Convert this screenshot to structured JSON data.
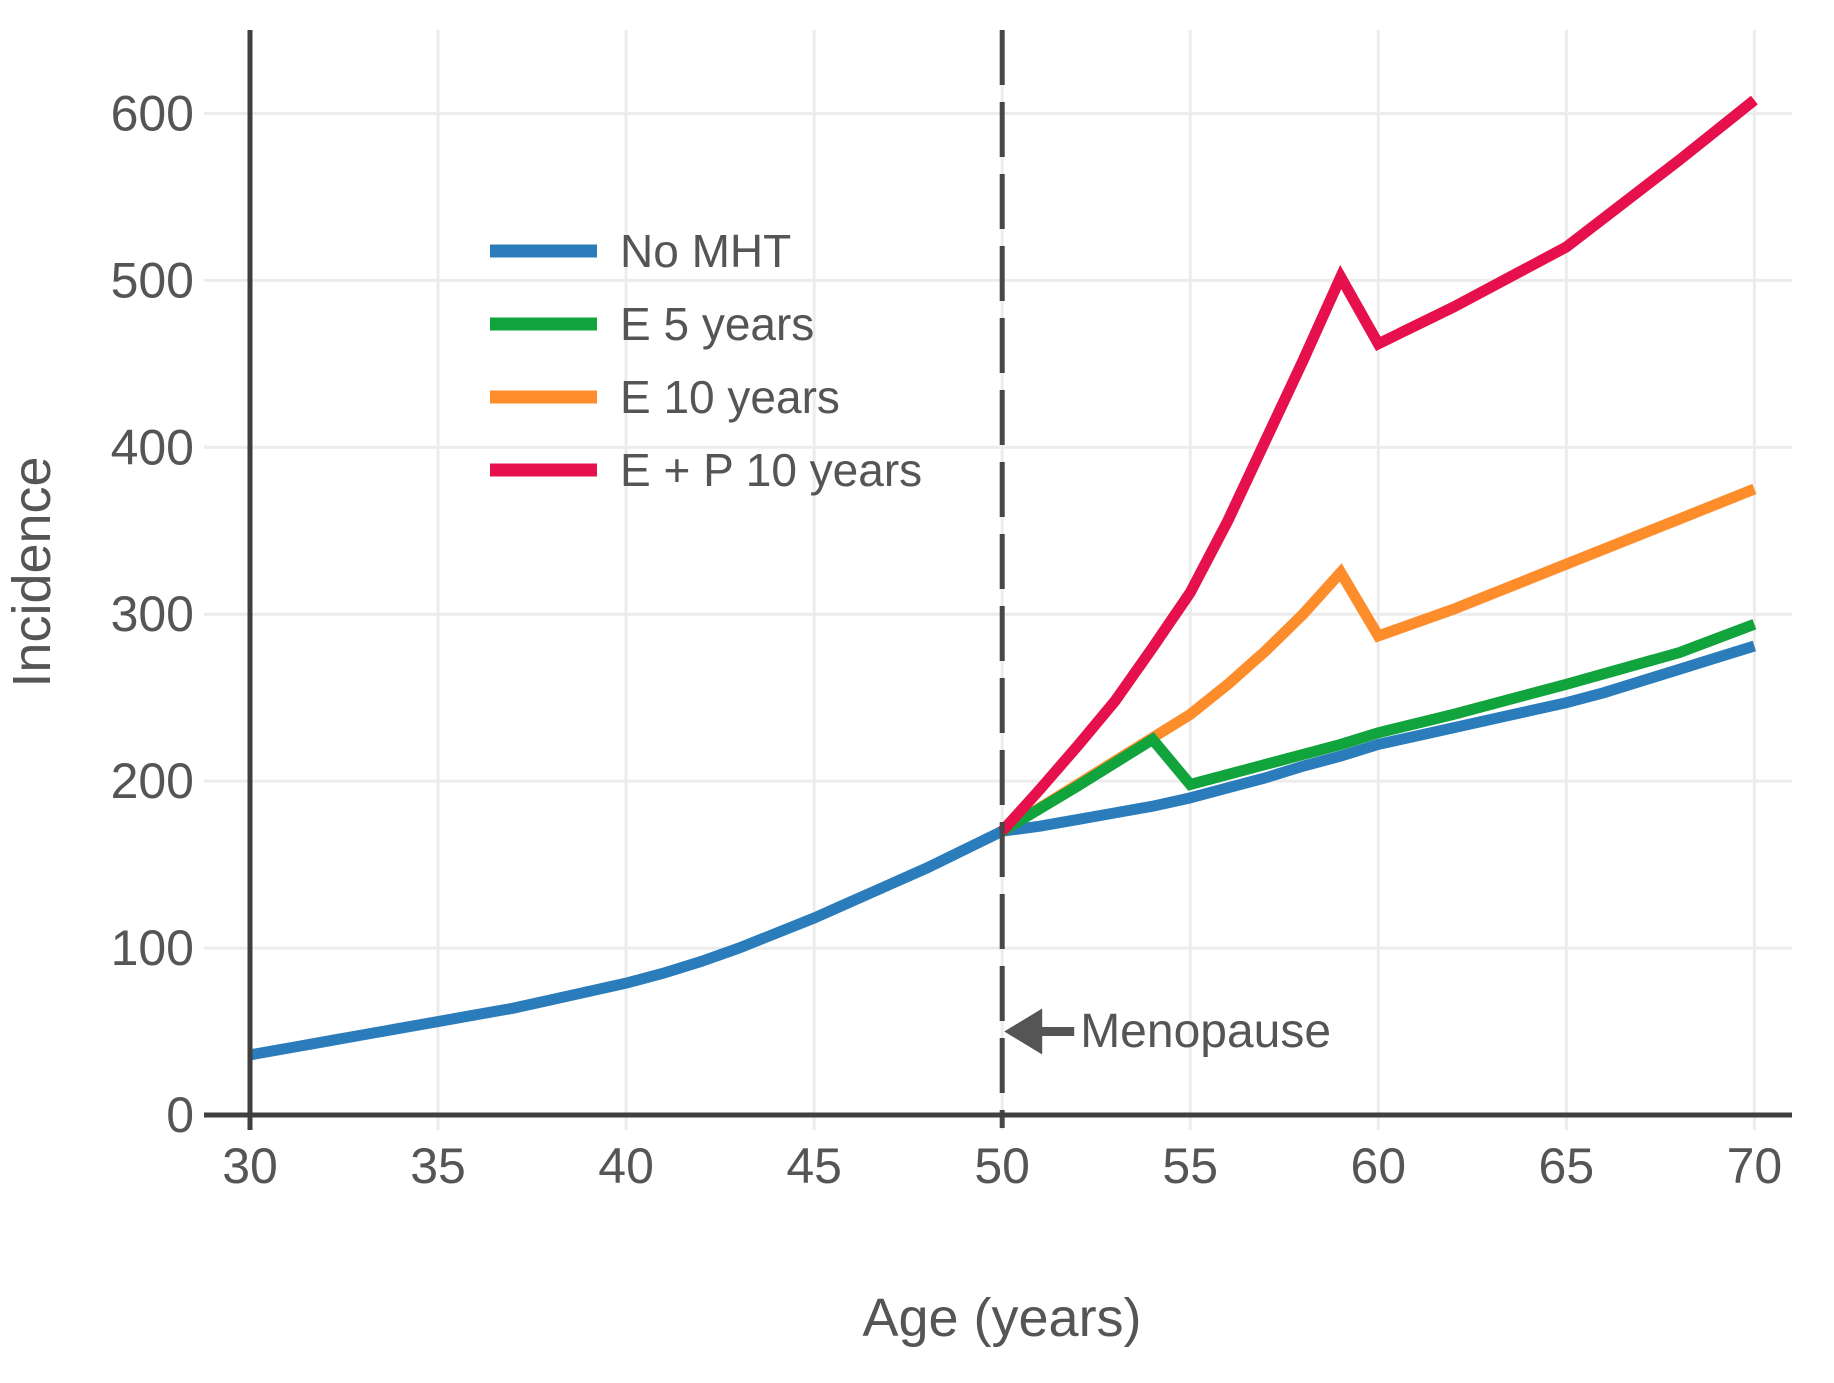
{
  "figure": {
    "background": "#ffffff",
    "text_color": "#555555",
    "axis_color": "#3f3f3f",
    "grid_color": "#ececec",
    "dashed_line_color": "#474747",
    "annotation_color": "#555555"
  },
  "chart_data": {
    "type": "line",
    "title": "",
    "xlabel": "Age (years)",
    "ylabel": "Incidence",
    "xlim": [
      30,
      71
    ],
    "ylim": [
      0,
      650
    ],
    "xticks": [
      30,
      35,
      40,
      45,
      50,
      55,
      60,
      65,
      70
    ],
    "yticks": [
      0,
      100,
      200,
      300,
      400,
      500,
      600
    ],
    "grid": true,
    "legend_position": "upper-left",
    "series": [
      {
        "name": "No MHT",
        "color": "#2b7cba",
        "z": 1,
        "points": [
          [
            30,
            36
          ],
          [
            31,
            40
          ],
          [
            32,
            44
          ],
          [
            33,
            48
          ],
          [
            34,
            52
          ],
          [
            35,
            56
          ],
          [
            36,
            60
          ],
          [
            37,
            64
          ],
          [
            38,
            69
          ],
          [
            39,
            74
          ],
          [
            40,
            79
          ],
          [
            41,
            85
          ],
          [
            42,
            92
          ],
          [
            43,
            100
          ],
          [
            44,
            109
          ],
          [
            45,
            118
          ],
          [
            46,
            128
          ],
          [
            47,
            138
          ],
          [
            48,
            148
          ],
          [
            49,
            159
          ],
          [
            50,
            170
          ],
          [
            51,
            173
          ],
          [
            52,
            177
          ],
          [
            53,
            181
          ],
          [
            54,
            185
          ],
          [
            55,
            190
          ],
          [
            56,
            196
          ],
          [
            57,
            202
          ],
          [
            58,
            209
          ],
          [
            59,
            215
          ],
          [
            60,
            222
          ],
          [
            61,
            227
          ],
          [
            62,
            232
          ],
          [
            63,
            237
          ],
          [
            64,
            242
          ],
          [
            65,
            247
          ],
          [
            66,
            253
          ],
          [
            67,
            260
          ],
          [
            68,
            267
          ],
          [
            69,
            274
          ],
          [
            70,
            281
          ]
        ]
      },
      {
        "name": "E 5 years",
        "color": "#12a43c",
        "z": 3,
        "points": [
          [
            50,
            170
          ],
          [
            52,
            197
          ],
          [
            54,
            225
          ],
          [
            55,
            198
          ],
          [
            56,
            204
          ],
          [
            57,
            210
          ],
          [
            58,
            216
          ],
          [
            59,
            222
          ],
          [
            60,
            229
          ],
          [
            62,
            240
          ],
          [
            65,
            258
          ],
          [
            68,
            277
          ],
          [
            70,
            294
          ]
        ]
      },
      {
        "name": "E 10 years",
        "color": "#fd8c2a",
        "z": 2,
        "points": [
          [
            50,
            170
          ],
          [
            52,
            198
          ],
          [
            54,
            226
          ],
          [
            55,
            240
          ],
          [
            56,
            258
          ],
          [
            57,
            278
          ],
          [
            58,
            300
          ],
          [
            59,
            325
          ],
          [
            60,
            287
          ],
          [
            62,
            303
          ],
          [
            65,
            330
          ],
          [
            68,
            357
          ],
          [
            70,
            375
          ]
        ]
      },
      {
        "name": "E + P 10 years",
        "color": "#e5104c",
        "z": 4,
        "points": [
          [
            50,
            170
          ],
          [
            51,
            195
          ],
          [
            52,
            221
          ],
          [
            53,
            248
          ],
          [
            54,
            280
          ],
          [
            55,
            313
          ],
          [
            56,
            356
          ],
          [
            57,
            404
          ],
          [
            58,
            452
          ],
          [
            59,
            502
          ],
          [
            60,
            462
          ],
          [
            62,
            484
          ],
          [
            65,
            520
          ],
          [
            68,
            572
          ],
          [
            70,
            608
          ]
        ]
      }
    ],
    "vline": {
      "x": 50,
      "style": "dashed"
    },
    "annotation": {
      "text": "Menopause",
      "arrow": "left",
      "x": 50,
      "y": 50
    }
  }
}
